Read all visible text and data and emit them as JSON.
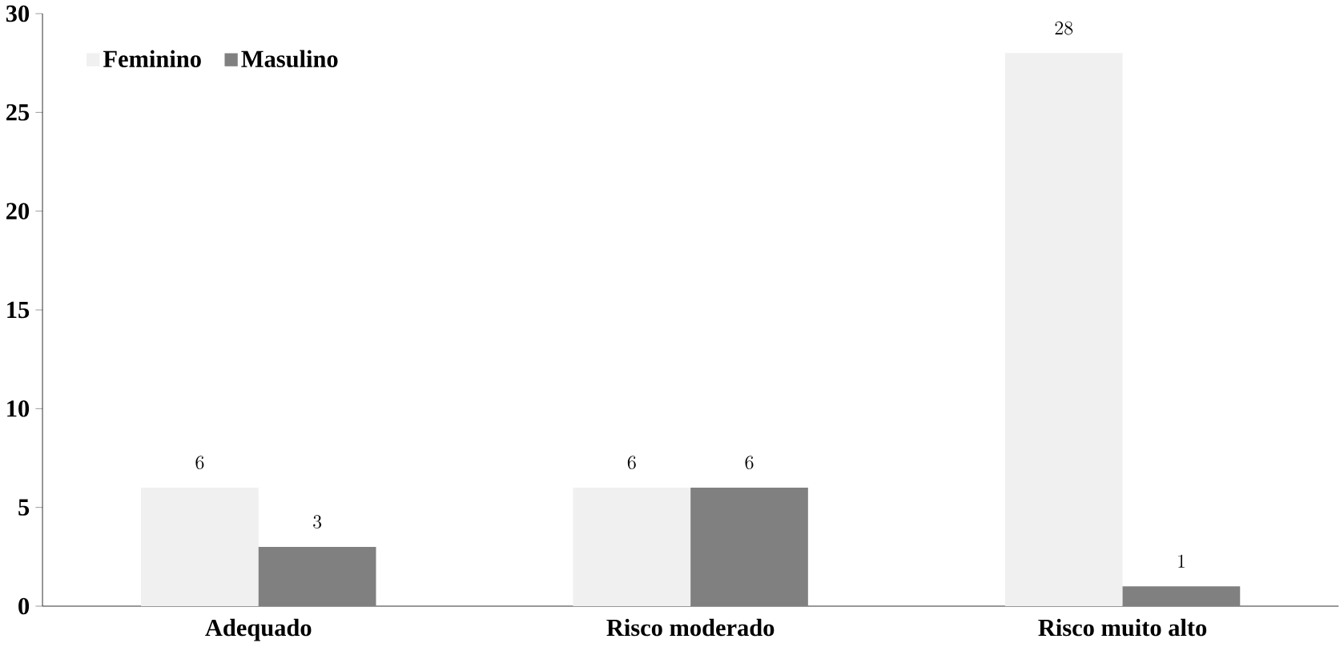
{
  "chart_data": {
    "type": "bar",
    "categories": [
      "Adequado",
      "Risco moderado",
      "Risco muito alto"
    ],
    "series": [
      {
        "name": "Feminino",
        "color": "#f0f0f0",
        "values": [
          6,
          6,
          28
        ]
      },
      {
        "name": "Masulino",
        "color": "#808080",
        "values": [
          3,
          6,
          1
        ]
      }
    ],
    "ylim": [
      0,
      30
    ],
    "yticks": [
      0,
      5,
      10,
      15,
      20,
      25,
      30
    ],
    "grid": false,
    "legend": "top left",
    "data_labels": true
  }
}
